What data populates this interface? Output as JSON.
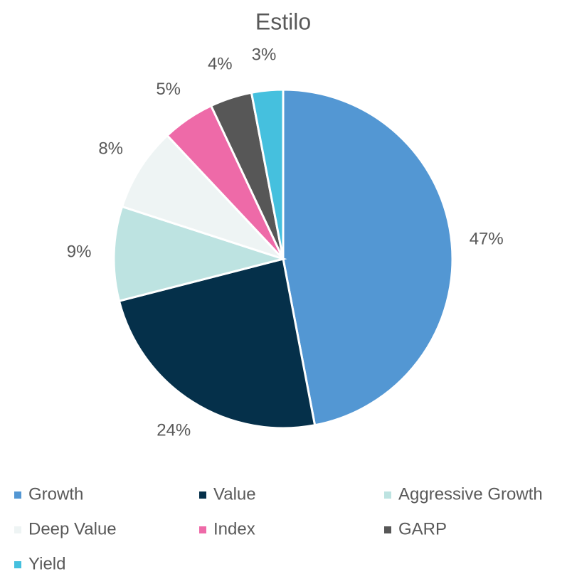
{
  "chart_data": {
    "type": "pie",
    "title": "Estilo",
    "categories": [
      "Growth",
      "Value",
      "Aggressive Growth",
      "Deep Value",
      "Index",
      "GARP",
      "Yield"
    ],
    "values": [
      47,
      24,
      9,
      8,
      5,
      4,
      3
    ],
    "value_labels": [
      "47%",
      "24%",
      "9%",
      "8%",
      "5%",
      "4%",
      "3%"
    ],
    "colors": [
      "#5397d3",
      "#05304a",
      "#bde3e1",
      "#eef4f4",
      "#ee6aa8",
      "#575757",
      "#45c0de"
    ],
    "legend": "bottom"
  }
}
